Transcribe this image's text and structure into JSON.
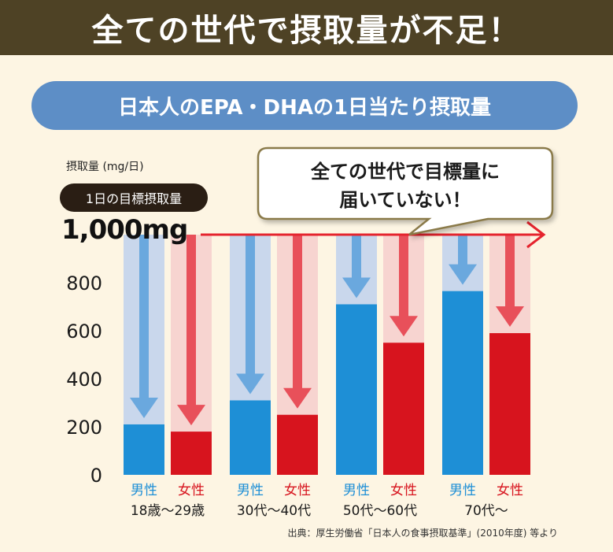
{
  "header": {
    "title": "全ての世代で摂取量が不足！"
  },
  "subtitle": "日本人のEPA・DHAの1日当たり摂取量",
  "unit_label": "摂取量 (mg/日)",
  "target": {
    "label": "1日の目標摂取量",
    "value_text": "1,000mg",
    "value": 1000
  },
  "callout": {
    "line1": "全ての世代で目標量に",
    "line2": "届いていない！"
  },
  "source": "出典：厚生労働省「日本人の食事摂取基準」(2010年度) 等より",
  "colors": {
    "male": "#1e8fd6",
    "female": "#d7141e",
    "male_light": "#c9d7ec",
    "female_light": "#f7d4d0",
    "male_arrow": "#6aa8de",
    "female_arrow": "#e8505a",
    "target_line": "#e5242e",
    "axis_text": "#1a1a1a"
  },
  "chart_data": {
    "type": "bar",
    "categories": [
      "18歳～29歳",
      "30代～40代",
      "50代～60代",
      "70代～"
    ],
    "series": [
      {
        "name": "男性",
        "values": [
          210,
          310,
          710,
          765
        ]
      },
      {
        "name": "女性",
        "values": [
          180,
          250,
          550,
          590
        ]
      }
    ],
    "yticks": [
      0,
      200,
      400,
      600,
      800
    ],
    "ylim": [
      0,
      1000
    ],
    "target_value": 1000
  }
}
